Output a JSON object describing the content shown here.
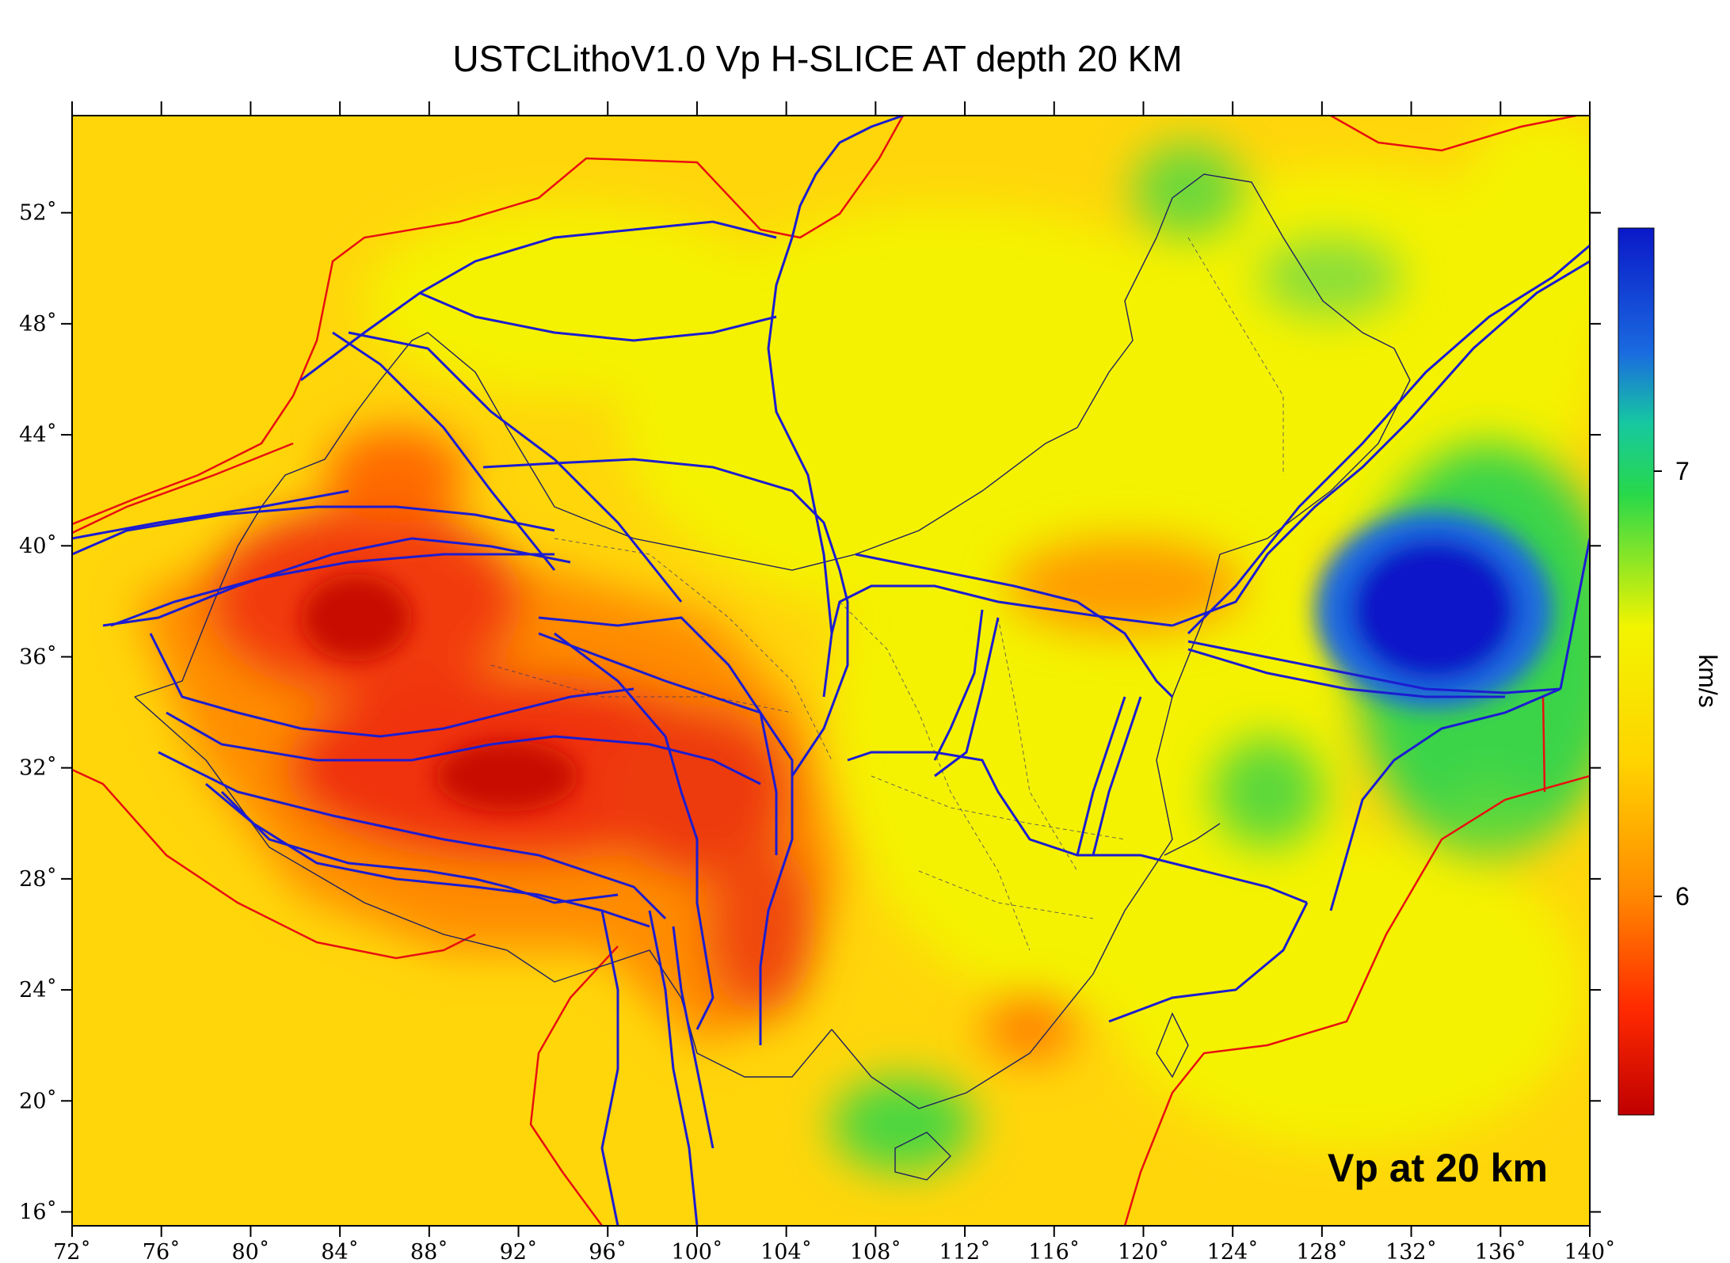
{
  "title": "USTCLithoV1.0 Vp H-SLICE AT depth 20 KM",
  "inset_label": "Vp at 20 km",
  "x_ticks": [
    "72˚",
    "76˚",
    "80˚",
    "84˚",
    "88˚",
    "92˚",
    "96˚",
    "100˚",
    "104˚",
    "108˚",
    "112˚",
    "116˚",
    "120˚",
    "124˚",
    "128˚",
    "132˚",
    "136˚",
    "140˚"
  ],
  "y_ticks": [
    "16˚",
    "20˚",
    "24˚",
    "28˚",
    "32˚",
    "36˚",
    "40˚",
    "44˚",
    "48˚",
    "52˚"
  ],
  "colorbar": {
    "label": "km/s",
    "ticks": [
      "7",
      "6"
    ],
    "colors": [
      "#0a18c8",
      "#1a6ae0",
      "#16c8a0",
      "#28d84a",
      "#f2f400",
      "#ffd400",
      "#ff8a00",
      "#ff2a00",
      "#c00000"
    ]
  },
  "map_data": {
    "lon_range": [
      72,
      140
    ],
    "lat_range": [
      15.5,
      55.5
    ],
    "background_color": "#ffd60a",
    "low_velocity_color": "#e81808",
    "high_velocity_color": "#0a2ae0",
    "fault_color": "#1c1cd0",
    "plate_boundary_color": "#e81010",
    "border_color": "#202060"
  }
}
